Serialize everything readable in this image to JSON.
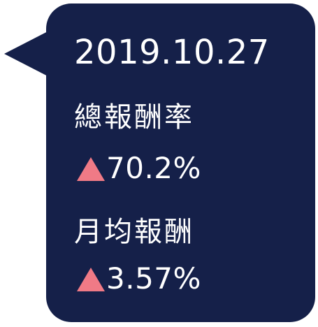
{
  "tooltip": {
    "date": "2019.10.27",
    "metrics": [
      {
        "label": "總報酬率",
        "trend_icon": "up-triangle-icon",
        "value": "70.2%"
      },
      {
        "label": "月均報酬",
        "trend_icon": "up-triangle-icon",
        "value": "3.57%"
      }
    ]
  },
  "colors": {
    "background": "#152049",
    "text": "#ffffff",
    "up_indicator": "#f07a86"
  }
}
